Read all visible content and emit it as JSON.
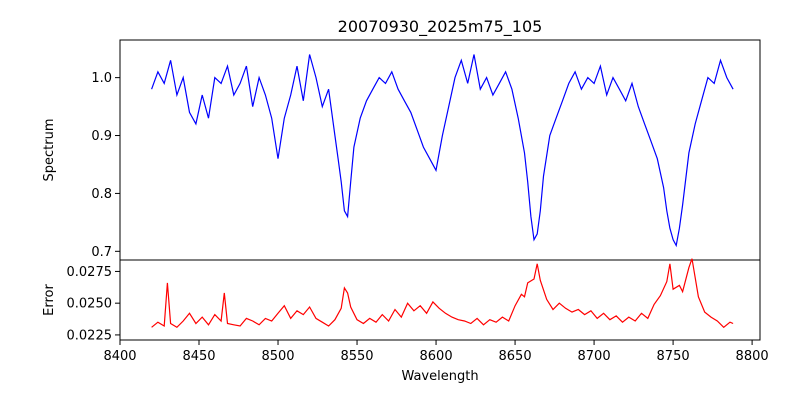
{
  "chart_data": [
    {
      "type": "line",
      "title": "20070930_2025m75_105",
      "xlabel": "",
      "ylabel": "Spectrum",
      "xlim": [
        8400,
        8805
      ],
      "ylim": [
        0.685,
        1.065
      ],
      "yticks": [
        0.7,
        0.8,
        0.9,
        1.0
      ],
      "ytick_labels": [
        "0.7",
        "0.8",
        "0.9",
        "1.0"
      ],
      "grid": false,
      "series": [
        {
          "color": "#0000ff",
          "x": [
            8420,
            8424,
            8428,
            8432,
            8436,
            8440,
            8444,
            8448,
            8452,
            8456,
            8460,
            8464,
            8468,
            8472,
            8476,
            8480,
            8484,
            8488,
            8492,
            8496,
            8500,
            8504,
            8508,
            8512,
            8516,
            8520,
            8524,
            8528,
            8532,
            8536,
            8538,
            8540,
            8542,
            8544,
            8546,
            8548,
            8552,
            8556,
            8560,
            8564,
            8568,
            8572,
            8576,
            8580,
            8584,
            8588,
            8592,
            8596,
            8600,
            8604,
            8608,
            8612,
            8616,
            8620,
            8624,
            8628,
            8632,
            8636,
            8640,
            8644,
            8648,
            8652,
            8656,
            8658,
            8660,
            8662,
            8664,
            8666,
            8668,
            8672,
            8676,
            8680,
            8684,
            8688,
            8692,
            8696,
            8700,
            8704,
            8708,
            8712,
            8716,
            8720,
            8724,
            8728,
            8732,
            8736,
            8740,
            8744,
            8746,
            8748,
            8750,
            8752,
            8754,
            8756,
            8760,
            8764,
            8768,
            8772,
            8776,
            8780,
            8784,
            8788
          ],
          "values": [
            0.98,
            1.01,
            0.99,
            1.03,
            0.97,
            1.0,
            0.94,
            0.92,
            0.97,
            0.93,
            1.0,
            0.99,
            1.02,
            0.97,
            0.99,
            1.02,
            0.95,
            1.0,
            0.97,
            0.93,
            0.86,
            0.93,
            0.97,
            1.02,
            0.96,
            1.04,
            1.0,
            0.95,
            0.98,
            0.9,
            0.86,
            0.82,
            0.77,
            0.76,
            0.82,
            0.88,
            0.93,
            0.96,
            0.98,
            1.0,
            0.99,
            1.01,
            0.98,
            0.96,
            0.94,
            0.91,
            0.88,
            0.86,
            0.84,
            0.9,
            0.95,
            1.0,
            1.03,
            0.99,
            1.04,
            0.98,
            1.0,
            0.97,
            0.99,
            1.01,
            0.98,
            0.93,
            0.87,
            0.82,
            0.76,
            0.72,
            0.73,
            0.77,
            0.83,
            0.9,
            0.93,
            0.96,
            0.99,
            1.01,
            0.98,
            1.0,
            0.99,
            1.02,
            0.97,
            1.0,
            0.98,
            0.96,
            0.99,
            0.95,
            0.92,
            0.89,
            0.86,
            0.81,
            0.77,
            0.74,
            0.72,
            0.71,
            0.74,
            0.78,
            0.87,
            0.92,
            0.96,
            1.0,
            0.99,
            1.03,
            1.0,
            0.98
          ]
        }
      ]
    },
    {
      "type": "line",
      "title": "",
      "xlabel": "Wavelength",
      "ylabel": "Error",
      "xlim": [
        8400,
        8805
      ],
      "ylim": [
        0.0221,
        0.0284
      ],
      "xticks": [
        8400,
        8450,
        8500,
        8550,
        8600,
        8650,
        8700,
        8750,
        8800
      ],
      "xtick_labels": [
        "8400",
        "8450",
        "8500",
        "8550",
        "8600",
        "8650",
        "8700",
        "8750",
        "8800"
      ],
      "yticks": [
        0.0225,
        0.025,
        0.0275
      ],
      "ytick_labels": [
        "0.0225",
        "0.0250",
        "0.0275"
      ],
      "grid": false,
      "series": [
        {
          "color": "#ff0000",
          "x": [
            8420,
            8424,
            8428,
            8430,
            8432,
            8436,
            8440,
            8444,
            8448,
            8452,
            8456,
            8460,
            8464,
            8466,
            8468,
            8472,
            8476,
            8480,
            8484,
            8488,
            8492,
            8496,
            8500,
            8504,
            8508,
            8512,
            8516,
            8520,
            8524,
            8528,
            8532,
            8536,
            8540,
            8542,
            8544,
            8546,
            8550,
            8554,
            8558,
            8562,
            8566,
            8570,
            8574,
            8578,
            8582,
            8586,
            8590,
            8594,
            8598,
            8602,
            8606,
            8610,
            8614,
            8618,
            8622,
            8626,
            8630,
            8634,
            8638,
            8642,
            8646,
            8650,
            8654,
            8656,
            8658,
            8662,
            8664,
            8666,
            8670,
            8674,
            8678,
            8682,
            8686,
            8690,
            8694,
            8698,
            8702,
            8706,
            8710,
            8714,
            8718,
            8722,
            8726,
            8730,
            8734,
            8738,
            8742,
            8746,
            8748,
            8750,
            8754,
            8756,
            8760,
            8762,
            8766,
            8770,
            8774,
            8778,
            8782,
            8786,
            8788
          ],
          "values": [
            0.0231,
            0.0235,
            0.0232,
            0.0266,
            0.0234,
            0.0231,
            0.0236,
            0.0242,
            0.0234,
            0.0239,
            0.0233,
            0.0241,
            0.0236,
            0.0258,
            0.0234,
            0.0233,
            0.0232,
            0.0238,
            0.0236,
            0.0233,
            0.0238,
            0.0236,
            0.0242,
            0.0248,
            0.0238,
            0.0244,
            0.0241,
            0.0247,
            0.0238,
            0.0235,
            0.0232,
            0.0237,
            0.0246,
            0.0262,
            0.0258,
            0.0247,
            0.0237,
            0.0234,
            0.0238,
            0.0235,
            0.0241,
            0.0236,
            0.0245,
            0.0239,
            0.025,
            0.0244,
            0.0248,
            0.0242,
            0.0251,
            0.0246,
            0.0242,
            0.0239,
            0.0237,
            0.0236,
            0.0234,
            0.0238,
            0.0233,
            0.0237,
            0.0235,
            0.0239,
            0.0236,
            0.0248,
            0.0257,
            0.0255,
            0.0266,
            0.0269,
            0.0281,
            0.0268,
            0.0253,
            0.0245,
            0.025,
            0.0246,
            0.0243,
            0.0245,
            0.0241,
            0.0244,
            0.0238,
            0.0242,
            0.0237,
            0.024,
            0.0235,
            0.0239,
            0.0236,
            0.0242,
            0.0238,
            0.0249,
            0.0256,
            0.0267,
            0.0281,
            0.0261,
            0.0264,
            0.0259,
            0.0278,
            0.0285,
            0.0255,
            0.0243,
            0.0239,
            0.0236,
            0.0231,
            0.0235,
            0.0234
          ]
        }
      ]
    }
  ]
}
